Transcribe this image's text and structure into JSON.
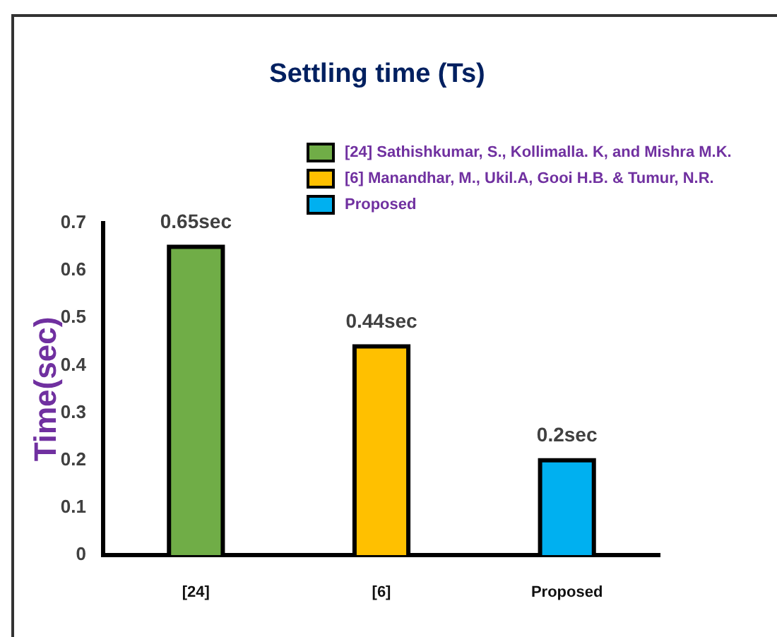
{
  "chart_data": {
    "type": "bar",
    "title": "Settling time (Ts)",
    "ylabel": "Time(sec)",
    "categories": [
      "[24]",
      "[6]",
      "Proposed"
    ],
    "series": [
      {
        "name": "[24] Sathishkumar, S., Kollimalla. K, and Mishra M.K.",
        "color": "#70ad47",
        "values": [
          0.65,
          null,
          null
        ],
        "value_labels": [
          "0.65sec",
          null,
          null
        ]
      },
      {
        "name": "[6] Manandhar, M., Ukil.A, Gooi H.B. & Tumur, N.R.",
        "color": "#ffc000",
        "values": [
          null,
          0.44,
          null
        ],
        "value_labels": [
          null,
          "0.44sec",
          null
        ]
      },
      {
        "name": "Proposed",
        "color": "#00b0f0",
        "values": [
          null,
          null,
          0.2
        ],
        "value_labels": [
          null,
          null,
          "0.2sec"
        ]
      }
    ],
    "ylim": [
      0,
      0.7
    ],
    "yticks": [
      0,
      0.1,
      0.2,
      0.3,
      0.4,
      0.5,
      0.6,
      0.7
    ],
    "legend": "top right"
  }
}
